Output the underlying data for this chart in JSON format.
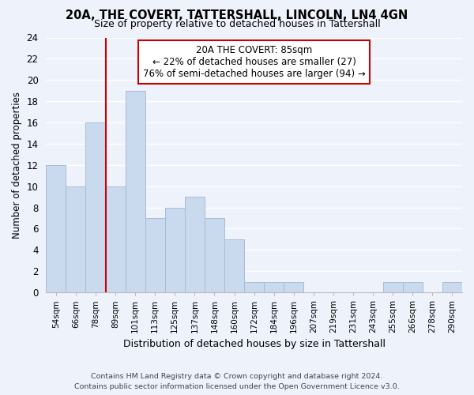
{
  "title": "20A, THE COVERT, TATTERSHALL, LINCOLN, LN4 4GN",
  "subtitle": "Size of property relative to detached houses in Tattershall",
  "xlabel": "Distribution of detached houses by size in Tattershall",
  "ylabel": "Number of detached properties",
  "bin_labels": [
    "54sqm",
    "66sqm",
    "78sqm",
    "89sqm",
    "101sqm",
    "113sqm",
    "125sqm",
    "137sqm",
    "148sqm",
    "160sqm",
    "172sqm",
    "184sqm",
    "196sqm",
    "207sqm",
    "219sqm",
    "231sqm",
    "243sqm",
    "255sqm",
    "266sqm",
    "278sqm",
    "290sqm"
  ],
  "bar_heights": [
    12,
    10,
    16,
    10,
    19,
    7,
    8,
    9,
    7,
    5,
    1,
    1,
    1,
    0,
    0,
    0,
    0,
    1,
    1,
    0,
    1
  ],
  "bar_color": "#c9d9ee",
  "bar_edge_color": "#aabbd4",
  "vline_x_index": 2.5,
  "vline_color": "#cc0000",
  "ylim": [
    0,
    24
  ],
  "yticks": [
    0,
    2,
    4,
    6,
    8,
    10,
    12,
    14,
    16,
    18,
    20,
    22,
    24
  ],
  "annotation_title": "20A THE COVERT: 85sqm",
  "annotation_line1": "← 22% of detached houses are smaller (27)",
  "annotation_line2": "76% of semi-detached houses are larger (94) →",
  "annotation_box_color": "#ffffff",
  "annotation_box_edge": "#cc0000",
  "footer_line1": "Contains HM Land Registry data © Crown copyright and database right 2024.",
  "footer_line2": "Contains public sector information licensed under the Open Government Licence v3.0.",
  "background_color": "#eef2fb",
  "plot_bg_color": "#eef2fb",
  "grid_color": "#ffffff"
}
